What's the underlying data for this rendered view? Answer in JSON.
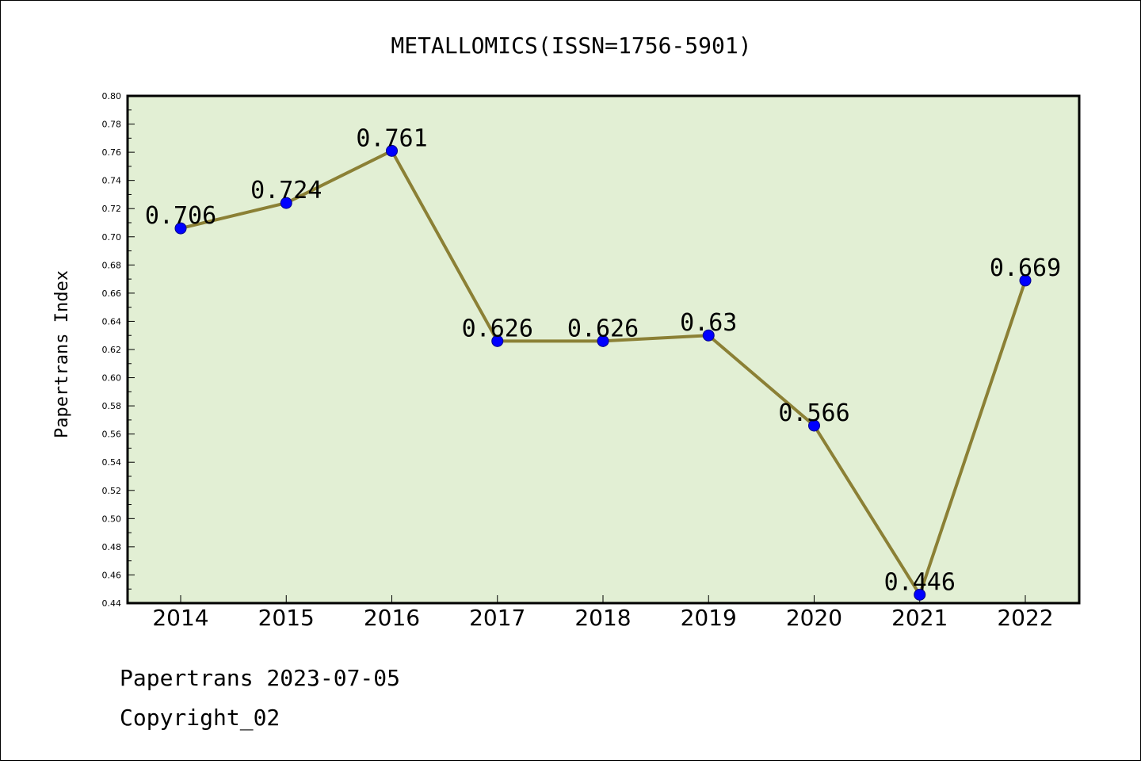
{
  "footer": {
    "line1": "Papertrans 2023-07-05",
    "line2": "Copyright_02"
  },
  "colors": {
    "plot_bg": "#e2efd4",
    "line": "#8b8035",
    "marker": "#0000ff",
    "marker_edge": "#00008b"
  },
  "chart_data": {
    "type": "line",
    "title": "METALLOMICS(ISSN=1756-5901)",
    "xlabel": "",
    "ylabel": "Papertrans Index",
    "categories": [
      "2014",
      "2015",
      "2016",
      "2017",
      "2018",
      "2019",
      "2020",
      "2021",
      "2022"
    ],
    "series": [
      {
        "values": [
          0.706,
          0.724,
          0.761,
          0.626,
          0.626,
          0.63,
          0.566,
          0.446,
          0.669
        ],
        "labels": [
          "0.706",
          "0.724",
          "0.761",
          "0.626",
          "0.626",
          "0.63",
          "0.566",
          "0.446",
          "0.669"
        ]
      }
    ],
    "ylim": [
      0.44,
      0.8
    ],
    "yticks": [
      "0.44",
      "0.46",
      "0.48",
      "0.50",
      "0.52",
      "0.54",
      "0.56",
      "0.58",
      "0.60",
      "0.62",
      "0.64",
      "0.66",
      "0.68",
      "0.70",
      "0.72",
      "0.74",
      "0.76",
      "0.78",
      "0.80"
    ],
    "grid": false,
    "legend": "none"
  }
}
